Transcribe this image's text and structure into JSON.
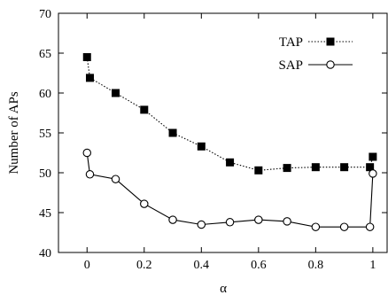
{
  "chart_data": {
    "type": "line",
    "title": "",
    "xlabel": "α",
    "ylabel": "Number of APs",
    "xlim": [
      -0.1,
      1.05
    ],
    "ylim": [
      40,
      70
    ],
    "x_ticks": [
      0,
      0.2,
      0.4,
      0.6,
      0.8,
      1
    ],
    "x_tick_labels": [
      "0",
      "0.2",
      "0.4",
      "0.6",
      "0.8",
      "1"
    ],
    "y_ticks": [
      40,
      45,
      50,
      55,
      60,
      65,
      70
    ],
    "y_tick_labels": [
      "40",
      "45",
      "50",
      "55",
      "60",
      "65",
      "70"
    ],
    "grid": false,
    "legend_position": "top-right",
    "series": [
      {
        "name": "TAP",
        "marker": "filled-square",
        "line_style": "dotted",
        "color": "#000000",
        "x": [
          0,
          0.01,
          0.1,
          0.2,
          0.3,
          0.4,
          0.5,
          0.6,
          0.7,
          0.8,
          0.9,
          0.99,
          1.0
        ],
        "y": [
          64.5,
          61.9,
          60.0,
          57.9,
          55.0,
          53.3,
          51.3,
          50.3,
          50.6,
          50.7,
          50.7,
          50.7,
          52.0
        ]
      },
      {
        "name": "SAP",
        "marker": "open-circle",
        "line_style": "solid",
        "color": "#000000",
        "x": [
          0,
          0.01,
          0.1,
          0.2,
          0.3,
          0.4,
          0.5,
          0.6,
          0.7,
          0.8,
          0.9,
          0.99,
          1.0
        ],
        "y": [
          52.5,
          49.8,
          49.2,
          46.1,
          44.1,
          43.5,
          43.8,
          44.1,
          43.9,
          43.2,
          43.2,
          43.2,
          49.9
        ]
      }
    ]
  }
}
